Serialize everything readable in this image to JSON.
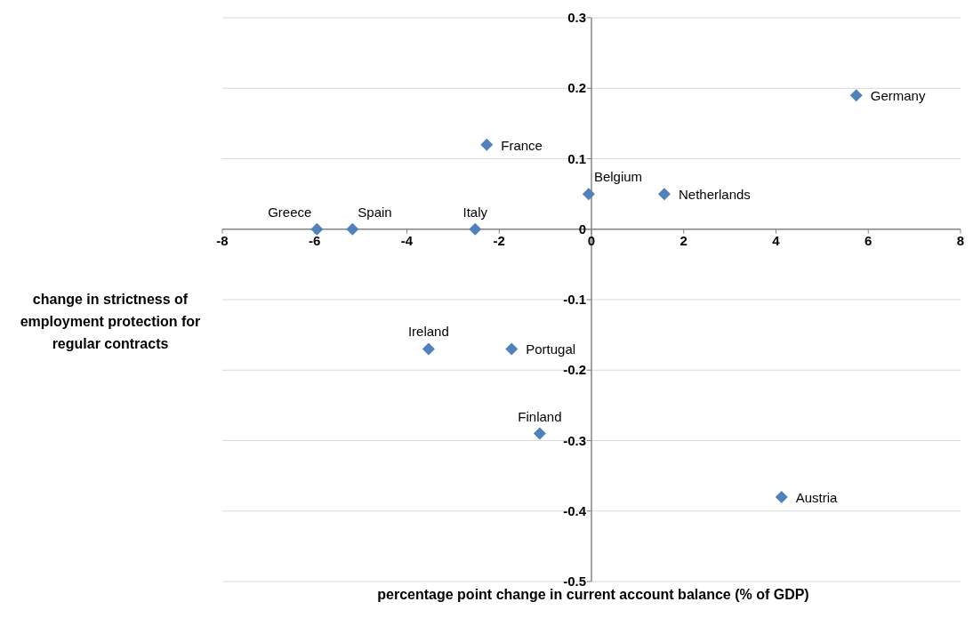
{
  "chart_data": {
    "type": "scatter",
    "xlabel": "percentage point change in current account balance  (% of GDP)",
    "ylabel": "change in strictness of employment protection for regular contracts",
    "x": [
      5.74,
      -2.27,
      -0.06,
      1.58,
      -5.95,
      -5.18,
      -2.52,
      -3.53,
      -1.73,
      -1.12,
      4.12
    ],
    "series": [
      {
        "color": "#4f81bd",
        "values": [
          0.19,
          0.12,
          0.05,
          0.05,
          0,
          0,
          0,
          -0.17,
          -0.17,
          -0.29,
          -0.38
        ]
      }
    ],
    "annotations": [
      {
        "text": "Germany",
        "x": 5.74,
        "y": 0.19
      },
      {
        "text": "France",
        "x": -2.27,
        "y": 0.12
      },
      {
        "text": "Belgium",
        "x": -0.06,
        "y": 0.05
      },
      {
        "text": "Netherlands",
        "x": 1.58,
        "y": 0.05
      },
      {
        "text": "Greece",
        "x": -5.95,
        "y": 0
      },
      {
        "text": "Spain",
        "x": -5.18,
        "y": 0
      },
      {
        "text": "Italy",
        "x": -2.52,
        "y": 0
      },
      {
        "text": "Ireland",
        "x": -3.53,
        "y": -0.17
      },
      {
        "text": "Portugal",
        "x": -1.73,
        "y": -0.17
      },
      {
        "text": "Finland",
        "x": -1.12,
        "y": -0.29
      },
      {
        "text": "Austria",
        "x": 4.12,
        "y": -0.38
      }
    ],
    "xlim": [
      -8,
      8
    ],
    "xticks": [
      -8,
      -6,
      -4,
      -2,
      0,
      2,
      4,
      6,
      8
    ],
    "ylim": [
      -0.5,
      0.3
    ],
    "yticks": [
      -0.5,
      -0.4,
      -0.3,
      -0.2,
      -0.1,
      0,
      0.1,
      0.2,
      0.3
    ],
    "grid": "y",
    "marker": "diamond"
  }
}
